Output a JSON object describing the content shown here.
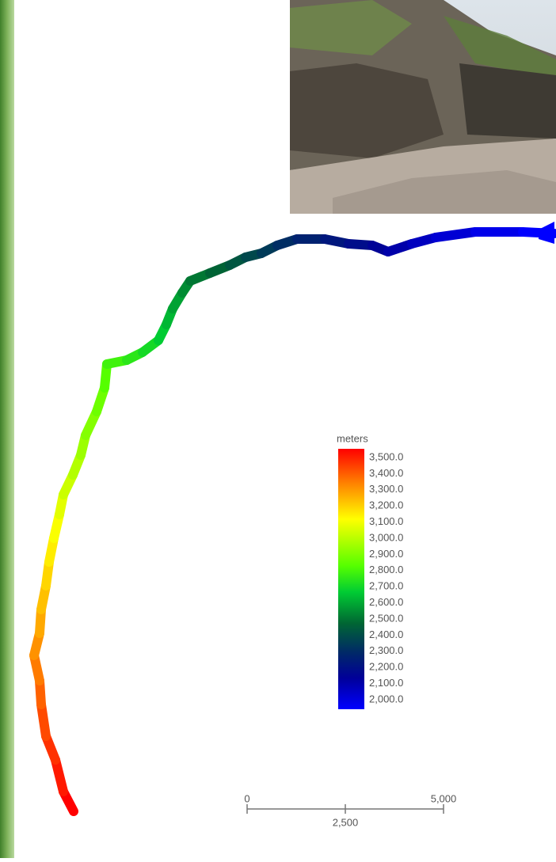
{
  "legend": {
    "title": "meters",
    "ticks": [
      {
        "value": 3500,
        "label": "3,500.0"
      },
      {
        "value": 3400,
        "label": "3,400.0"
      },
      {
        "value": 3300,
        "label": "3,300.0"
      },
      {
        "value": 3200,
        "label": "3,200.0"
      },
      {
        "value": 3100,
        "label": "3,100.0"
      },
      {
        "value": 3000,
        "label": "3,000.0"
      },
      {
        "value": 2900,
        "label": "2,900.0"
      },
      {
        "value": 2800,
        "label": "2,800.0"
      },
      {
        "value": 2700,
        "label": "2,700.0"
      },
      {
        "value": 2600,
        "label": "2,600.0"
      },
      {
        "value": 2500,
        "label": "2,500.0"
      },
      {
        "value": 2400,
        "label": "2,400.0"
      },
      {
        "value": 2300,
        "label": "2,300.0"
      },
      {
        "value": 2200,
        "label": "2,200.0"
      },
      {
        "value": 2100,
        "label": "2,100.0"
      },
      {
        "value": 2000,
        "label": "2,000.0"
      }
    ]
  },
  "scale_bar": {
    "ticks": [
      {
        "value": 0,
        "label": "0"
      },
      {
        "value": 2500,
        "label": "2,500"
      },
      {
        "value": 5000,
        "label": "5,000"
      }
    ]
  }
}
